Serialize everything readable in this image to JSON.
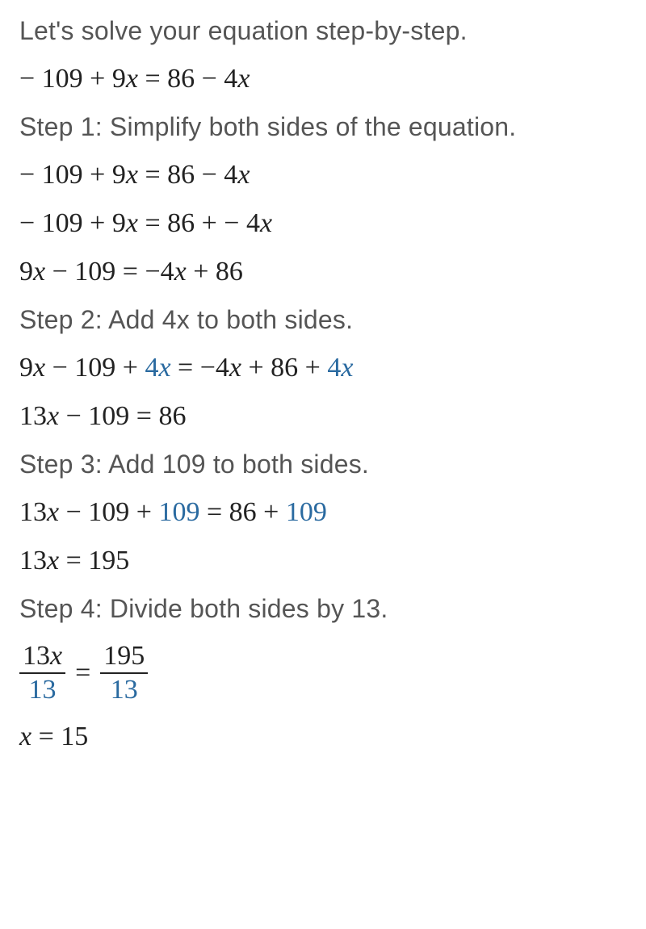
{
  "intro": "Let's solve your equation step-by-step.",
  "given": {
    "lhs_pre": "− 109 + 9",
    "rhs_pre": " = 86 − 4"
  },
  "step1": {
    "title": "Step 1: Simplify both sides of the equation.",
    "eq1_lhs": "− 109 + 9",
    "eq1_rhs": " = 86 − 4",
    "eq2_lhs": "− 109 + 9",
    "eq2_rhs_a": " = 86 +  − 4",
    "eq3_lhs_a": "9",
    "eq3_lhs_b": " − 109 = −4",
    "eq3_rhs": " + 86"
  },
  "step2": {
    "title": "Step 2: Add 4x to both sides.",
    "eq1_a": "9",
    "eq1_b": " − 109 + ",
    "eq1_hl1": "4",
    "eq1_c": " = −4",
    "eq1_d": " + 86 + ",
    "eq1_hl2": "4",
    "eq2_a": "13",
    "eq2_b": " − 109 = 86"
  },
  "step3": {
    "title": "Step 3: Add 109 to both sides.",
    "eq1_a": "13",
    "eq1_b": " − 109 + ",
    "eq1_hl1": "109",
    "eq1_c": " = 86 + ",
    "eq1_hl2": "109",
    "eq2_a": "13",
    "eq2_b": " = 195"
  },
  "step4": {
    "title": "Step 4: Divide both sides by 13.",
    "frac_eq": {
      "num1_a": "13",
      "den1": "13",
      "num2": "195",
      "den2": "13",
      "eq": "="
    },
    "result_b": " = 15"
  },
  "xglyph": "x"
}
